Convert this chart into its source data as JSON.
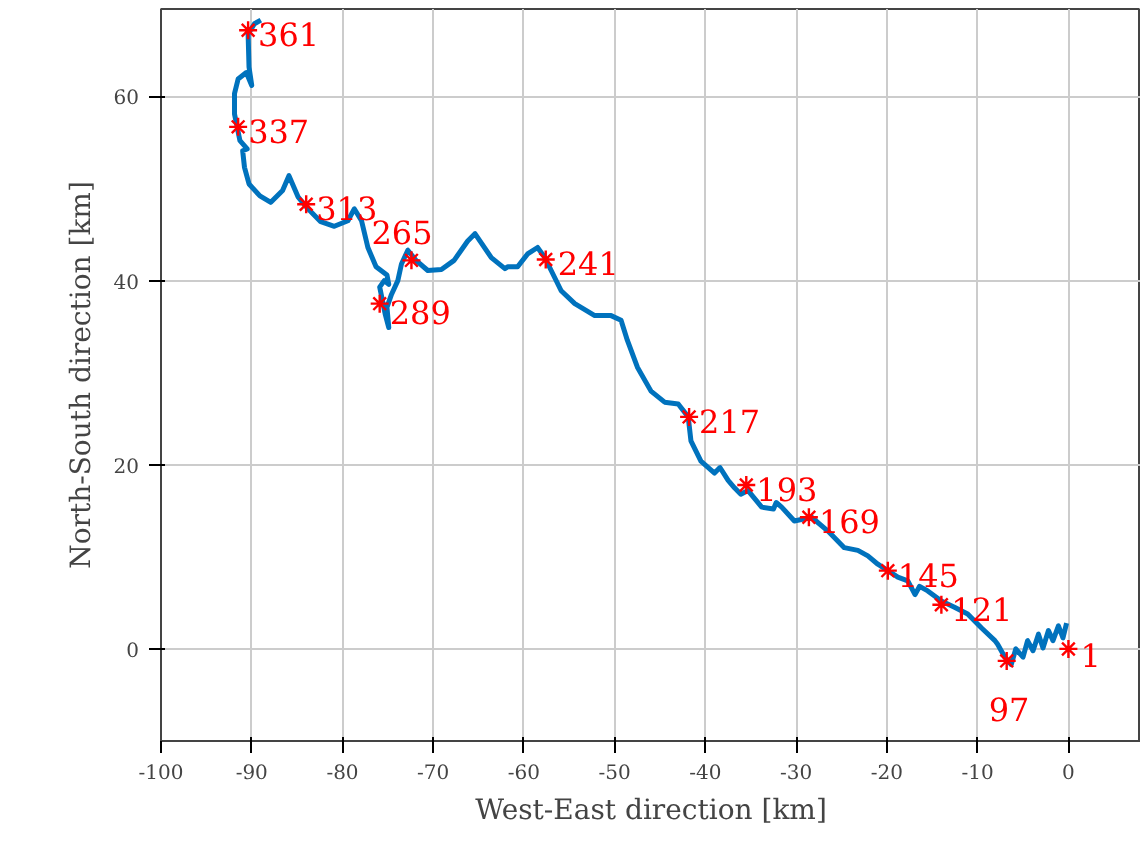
{
  "chart_data": {
    "type": "line",
    "xlabel": "West-East direction [km]",
    "ylabel": "North-South direction [km]",
    "xlim": [
      -100,
      8
    ],
    "ylim": [
      -10,
      69.5
    ],
    "xticks": [
      -100,
      -90,
      -80,
      -70,
      -60,
      -50,
      -40,
      -30,
      -20,
      -10,
      0
    ],
    "yticks": [
      0,
      20,
      40,
      60
    ],
    "grid": true,
    "series": [
      {
        "color": "#0072bd",
        "marker": "none",
        "x": [
          -0.2,
          -0.6,
          -1.1,
          -1.7,
          -2.2,
          -2.8,
          -3.3,
          -3.9,
          -4.5,
          -5.0,
          -5.8,
          -6.3,
          -7.0,
          -7.8,
          -8.1,
          -9.6,
          -11.1,
          -12.5,
          -14.0,
          -15.5,
          -16.4,
          -16.9,
          -17.7,
          -18.8,
          -19.9,
          -21.0,
          -22.1,
          -23.2,
          -24.7,
          -26.5,
          -28.3,
          -30.2,
          -31.6,
          -32.2,
          -32.5,
          -33.8,
          -35.3,
          -36.1,
          -36.8,
          -37.5,
          -38.4,
          -39.0,
          -40.5,
          -41.6,
          -41.9,
          -43.0,
          -44.5,
          -46.0,
          -47.5,
          -48.6,
          -49.3,
          -50.4,
          -52.2,
          -54.4,
          -55.9,
          -57.0,
          -57.7,
          -58.5,
          -59.6,
          -60.7,
          -61.8,
          -62.1,
          -63.6,
          -65.4,
          -66.2,
          -67.7,
          -69.1,
          -70.6,
          -71.9,
          -72.8,
          -73.5,
          -73.9,
          -74.6,
          -75.1,
          -74.9,
          -75.3,
          -75.9,
          -75.4,
          -74.9,
          -75.1,
          -76.3,
          -77.2,
          -77.9,
          -78.7,
          -79.4,
          -80.9,
          -82.4,
          -83.8,
          -84.9,
          -85.9,
          -86.6,
          -87.9,
          -89.1,
          -90.3,
          -90.8,
          -91.0,
          -90.5,
          -91.3,
          -91.9,
          -91.9,
          -91.5,
          -90.6,
          -90.0,
          -90.3,
          -90.4,
          -89.7,
          -89.0
        ],
        "values": [
          2.8,
          1.2,
          2.5,
          0.9,
          2.0,
          0.1,
          1.6,
          -0.2,
          0.9,
          -0.9,
          0,
          -1.7,
          -0.9,
          0.5,
          0.9,
          2.3,
          3.8,
          4.5,
          5.2,
          6.3,
          6.8,
          5.9,
          7.4,
          7.8,
          8.5,
          9.2,
          10.1,
          10.7,
          11.0,
          12.8,
          14.3,
          13.9,
          15.4,
          15.9,
          15.2,
          15.4,
          17.2,
          16.8,
          17.5,
          18.3,
          19.7,
          19.1,
          20.4,
          22.6,
          25.2,
          26.6,
          26.8,
          28.0,
          30.6,
          33.5,
          35.7,
          36.2,
          36.2,
          37.5,
          38.9,
          41.1,
          42.5,
          43.6,
          42.9,
          41.5,
          41.5,
          41.3,
          42.5,
          45.1,
          44.3,
          42.2,
          41.2,
          41.1,
          42.2,
          43.3,
          41.8,
          40.0,
          38.5,
          37.1,
          34.9,
          36.4,
          39.3,
          40.0,
          39.6,
          40.6,
          41.5,
          43.6,
          46.5,
          47.8,
          46.5,
          45.9,
          46.4,
          47.8,
          49.1,
          51.4,
          49.8,
          48.5,
          49.2,
          50.5,
          52.3,
          54.1,
          54.3,
          55.2,
          58.1,
          60.3,
          61.9,
          62.6,
          61.2,
          63.2,
          66.8,
          67.9,
          68.3
        ]
      },
      {
        "type": "scatter",
        "color": "#ff0000",
        "marker": "cross",
        "x": [
          0,
          -6.8,
          -14.0,
          -19.9,
          -28.6,
          -35.5,
          -41.8,
          -57.6,
          -72.4,
          -75.9,
          -84.0,
          -91.5,
          -90.4
        ],
        "values": [
          0,
          -1.3,
          4.8,
          8.5,
          14.3,
          17.8,
          25.2,
          42.3,
          42.2,
          37.5,
          48.3,
          56.7,
          67.2
        ]
      }
    ],
    "annotations": [
      {
        "text": "1",
        "x": 0,
        "y": 0
      },
      {
        "text": "97",
        "x": -6.8,
        "y": -1.3
      },
      {
        "text": "121",
        "x": -14.0,
        "y": 4.8
      },
      {
        "text": "145",
        "x": -19.9,
        "y": 8.5
      },
      {
        "text": "169",
        "x": -28.6,
        "y": 14.3
      },
      {
        "text": "193",
        "x": -35.5,
        "y": 17.8
      },
      {
        "text": "217",
        "x": -41.8,
        "y": 25.2
      },
      {
        "text": "241",
        "x": -57.6,
        "y": 42.3
      },
      {
        "text": "265",
        "x": -72.4,
        "y": 42.2
      },
      {
        "text": "289",
        "x": -75.9,
        "y": 37.5
      },
      {
        "text": "313",
        "x": -84.0,
        "y": 48.3
      },
      {
        "text": "337",
        "x": -91.5,
        "y": 56.7
      },
      {
        "text": "361",
        "x": -90.4,
        "y": 67.2
      }
    ]
  }
}
